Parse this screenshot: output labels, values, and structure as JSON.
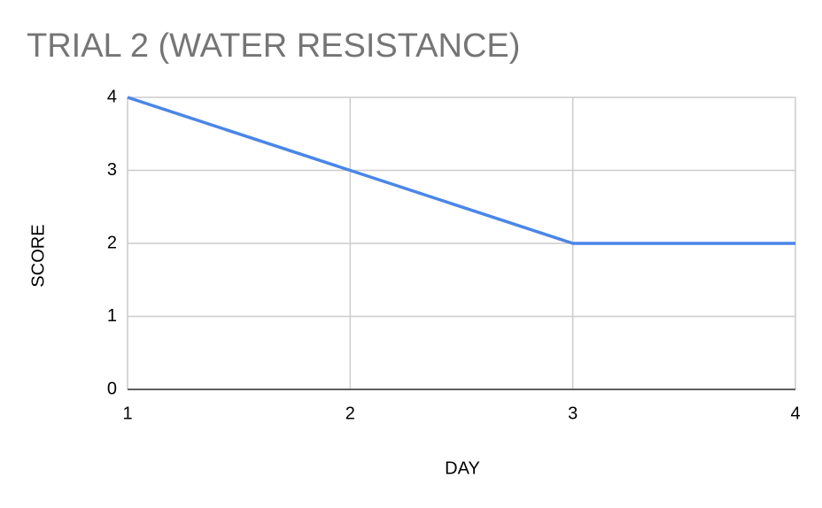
{
  "chart_data": {
    "type": "line",
    "title": "TRIAL 2 (WATER RESISTANCE)",
    "x_label": "DAY",
    "y_label": "SCORE",
    "x": [
      1,
      2,
      3,
      4
    ],
    "series": [
      {
        "name": "SCORE",
        "color": "#4a86e8",
        "values": [
          4,
          3,
          2,
          2
        ]
      }
    ],
    "xlim": [
      1,
      4
    ],
    "xticks": [
      1,
      2,
      3,
      4
    ],
    "ylim": [
      0,
      4
    ],
    "yticks": [
      0,
      1,
      2,
      3,
      4
    ],
    "grid": true
  }
}
